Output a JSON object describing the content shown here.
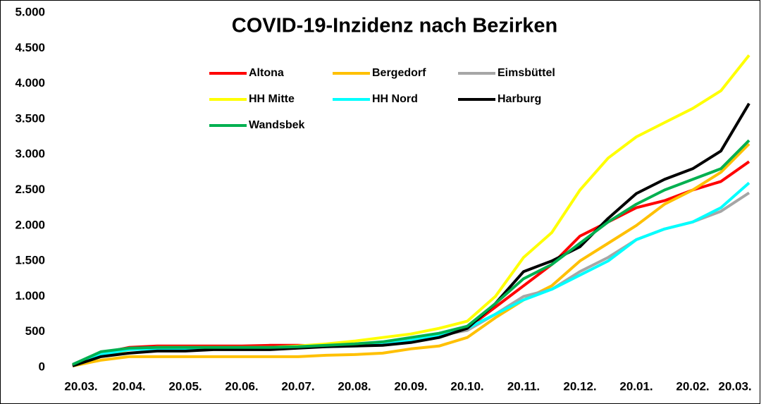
{
  "chart_data": {
    "type": "line",
    "title": "COVID-19-Inzidenz nach Bezirken",
    "categories": [
      "20.03.",
      null,
      "20.04.",
      null,
      "20.05.",
      null,
      "20.06.",
      null,
      "20.07.",
      null,
      "20.08.",
      null,
      "20.09.",
      null,
      "20.10.",
      null,
      "20.11.",
      null,
      "20.12.",
      null,
      "20.01.",
      null,
      "20.02.",
      null,
      "20.03."
    ],
    "ylim": [
      0,
      5000
    ],
    "yticks": [
      0,
      500,
      {
        "value": 1000,
        "label": "1.000"
      },
      {
        "value": 1500,
        "label": "1.500"
      },
      {
        "value": 2000,
        "label": "2.000"
      },
      {
        "value": 2500,
        "label": "2.500"
      },
      {
        "value": 3000,
        "label": "3.000"
      },
      {
        "value": 3500,
        "label": "3.500"
      },
      {
        "value": 4000,
        "label": "4.000"
      },
      {
        "value": 4500,
        "label": "4.500"
      },
      {
        "value": 5000,
        "label": "5.000"
      }
    ],
    "grid": false,
    "series": [
      {
        "name": "Altona",
        "color": "#ff0000",
        "values": [
          30,
          200,
          280,
          300,
          300,
          300,
          300,
          310,
          310,
          300,
          310,
          330,
          380,
          450,
          550,
          850,
          1150,
          1450,
          1850,
          2050,
          2250,
          2350,
          2500,
          2620,
          2900
        ]
      },
      {
        "name": "Bergedorf",
        "color": "#ffc000",
        "values": [
          20,
          100,
          150,
          150,
          150,
          150,
          150,
          150,
          150,
          170,
          180,
          200,
          260,
          300,
          420,
          700,
          950,
          1150,
          1500,
          1750,
          2000,
          2300,
          2500,
          2750,
          3150
        ]
      },
      {
        "name": "Eimsbüttel",
        "color": "#a6a6a6",
        "values": [
          40,
          200,
          260,
          280,
          280,
          280,
          280,
          280,
          290,
          300,
          310,
          330,
          380,
          450,
          520,
          750,
          1000,
          1100,
          1350,
          1550,
          1800,
          1950,
          2050,
          2200,
          2460
        ]
      },
      {
        "name": "HH Mitte",
        "color": "#ffff00",
        "values": [
          30,
          150,
          250,
          280,
          280,
          280,
          280,
          280,
          300,
          330,
          370,
          420,
          470,
          550,
          650,
          1000,
          1550,
          1900,
          2500,
          2950,
          3250,
          3450,
          3650,
          3900,
          4400
        ]
      },
      {
        "name": "HH Nord",
        "color": "#00ffff",
        "values": [
          40,
          180,
          250,
          260,
          260,
          260,
          260,
          270,
          280,
          290,
          300,
          320,
          380,
          450,
          550,
          750,
          950,
          1100,
          1300,
          1500,
          1800,
          1950,
          2050,
          2250,
          2600
        ]
      },
      {
        "name": "Harburg",
        "color": "#000000",
        "values": [
          20,
          150,
          200,
          230,
          230,
          250,
          250,
          250,
          270,
          290,
          300,
          310,
          350,
          420,
          550,
          900,
          1350,
          1500,
          1700,
          2100,
          2450,
          2650,
          2800,
          3050,
          3720
        ]
      },
      {
        "name": "Wandsbek",
        "color": "#00b050",
        "values": [
          40,
          220,
          270,
          280,
          280,
          280,
          280,
          280,
          290,
          310,
          330,
          360,
          420,
          480,
          580,
          900,
          1250,
          1450,
          1750,
          2050,
          2300,
          2500,
          2650,
          2800,
          3200
        ]
      }
    ]
  }
}
